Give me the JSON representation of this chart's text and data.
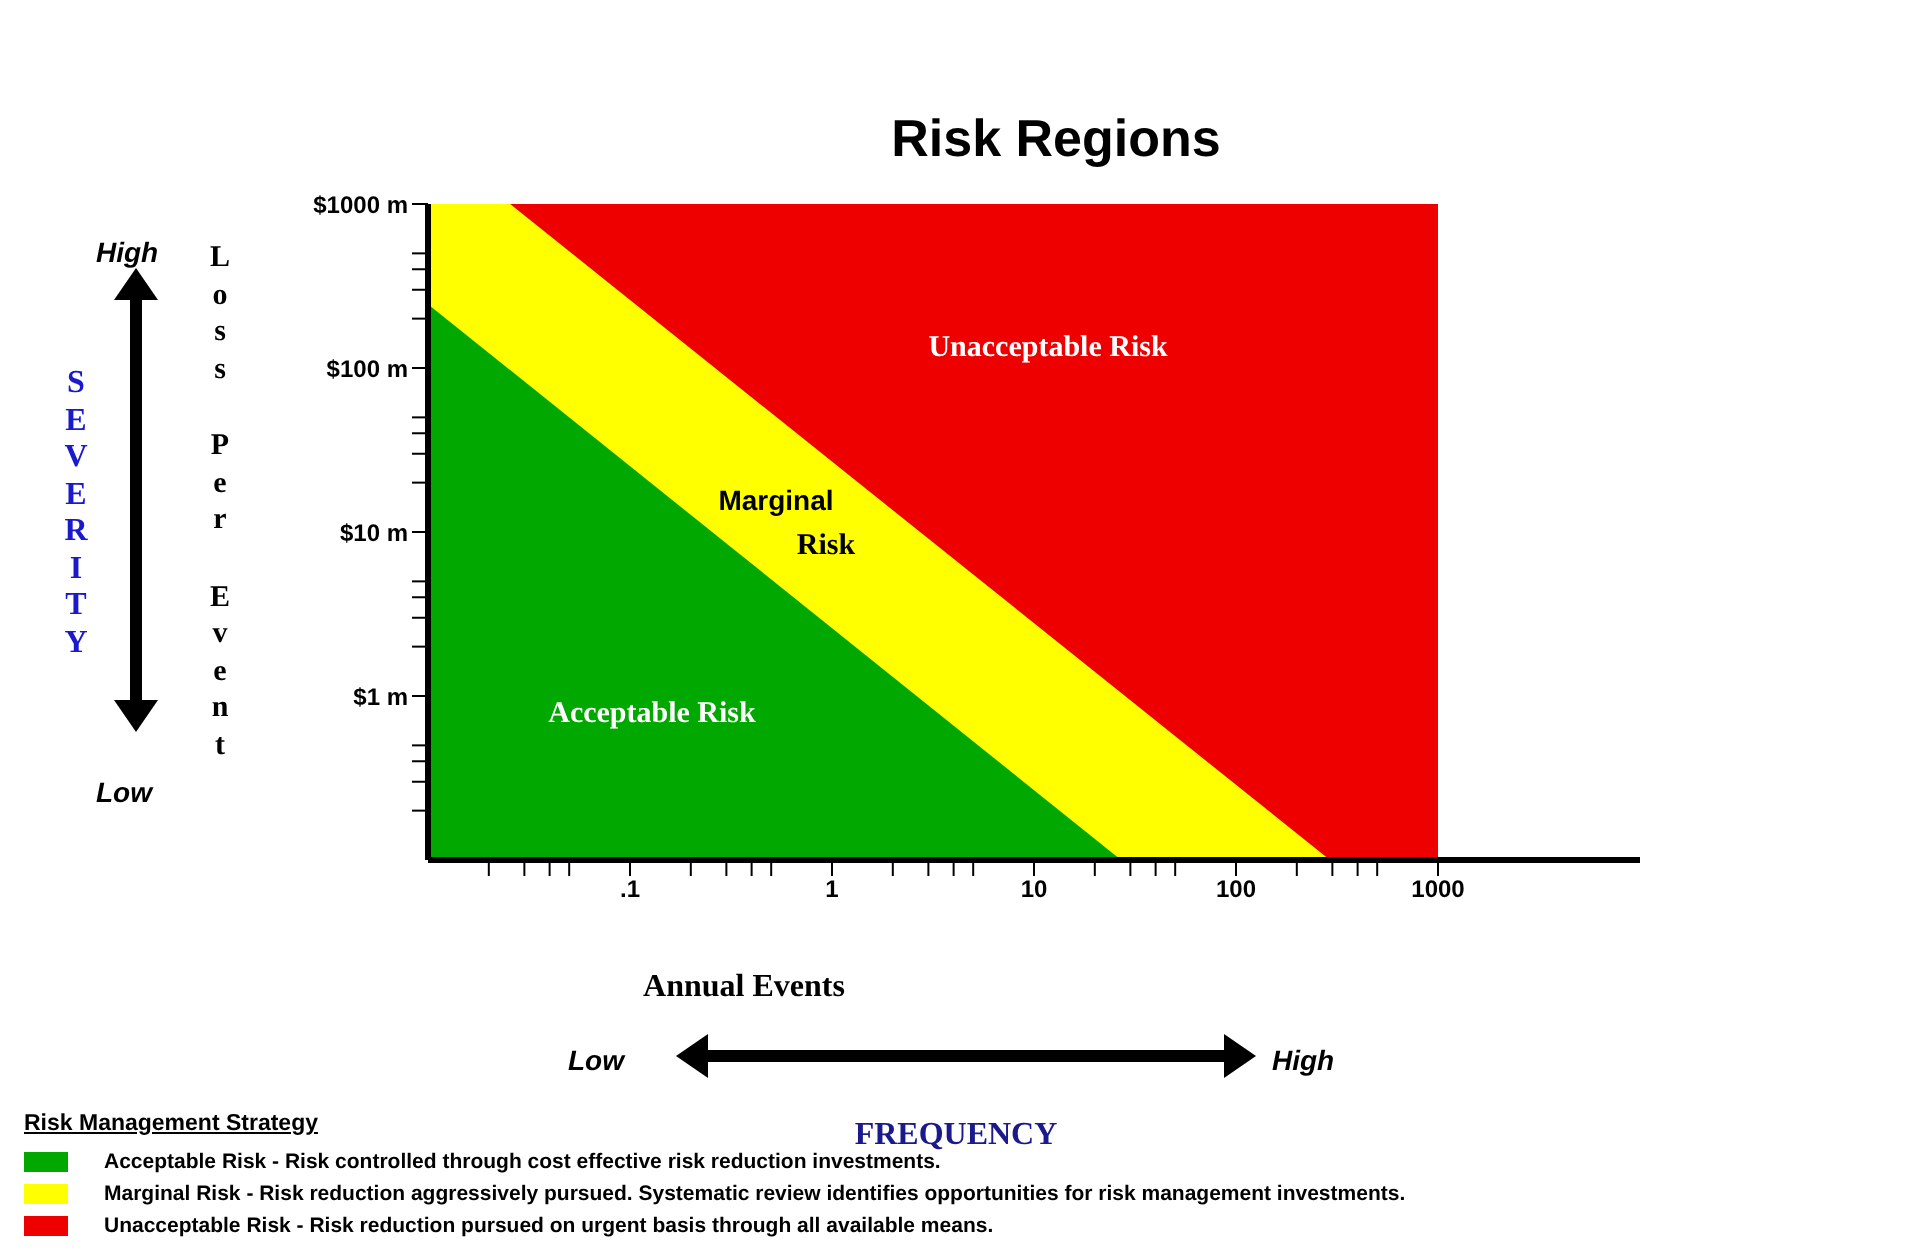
{
  "chart_data": {
    "type": "area",
    "title": "Risk Regions",
    "xlabel": "Annual Events",
    "ylabel": "Loss Per Event",
    "legend_title": "Risk Management Strategy",
    "legend": "bottom",
    "log": "xy",
    "xlim": [
      0.01,
      10000
    ],
    "xticks": [
      {
        "value": 0.02,
        "label": null
      },
      {
        "value": 0.03,
        "label": null
      },
      {
        "value": 0.04,
        "label": null
      },
      {
        "value": 0.05,
        "label": null
      },
      {
        "value": 0.1,
        "label": ".1"
      },
      {
        "value": 0.2,
        "label": null
      },
      {
        "value": 0.3,
        "label": null
      },
      {
        "value": 0.4,
        "label": null
      },
      {
        "value": 0.5,
        "label": null
      },
      1,
      {
        "value": 2,
        "label": null
      },
      {
        "value": 3,
        "label": null
      },
      {
        "value": 4,
        "label": null
      },
      {
        "value": 5,
        "label": null
      },
      10,
      {
        "value": 20,
        "label": null
      },
      {
        "value": 30,
        "label": null
      },
      {
        "value": 40,
        "label": null
      },
      {
        "value": 50,
        "label": null
      },
      100,
      {
        "value": 200,
        "label": null
      },
      {
        "value": 300,
        "label": null
      },
      {
        "value": 400,
        "label": null
      },
      {
        "value": 500,
        "label": null
      },
      1000
    ],
    "ylim": [
      0.1,
      1000
    ],
    "yticks": [
      {
        "value": 0.2,
        "label": null
      },
      {
        "value": 0.3,
        "label": null
      },
      {
        "value": 0.4,
        "label": null
      },
      {
        "value": 0.5,
        "label": null
      },
      {
        "value": 1,
        "label": "$1 m"
      },
      {
        "value": 2,
        "label": null
      },
      {
        "value": 3,
        "label": null
      },
      {
        "value": 4,
        "label": null
      },
      {
        "value": 5,
        "label": null
      },
      {
        "value": 10,
        "label": "$10 m"
      },
      {
        "value": 20,
        "label": null
      },
      {
        "value": 30,
        "label": null
      },
      {
        "value": 40,
        "label": null
      },
      {
        "value": 50,
        "label": null
      },
      {
        "value": 100,
        "label": "$100 m"
      },
      {
        "value": 200,
        "label": null
      },
      {
        "value": 300,
        "label": null
      },
      {
        "value": 400,
        "label": null
      },
      {
        "value": 500,
        "label": null
      },
      {
        "value": 1000,
        "label": "$1000 m"
      }
    ],
    "series": [
      {
        "name": "Acceptable Risk - Risk controlled through cost effective risk reduction investments.",
        "color": "#00a800",
        "x": [
          0.01,
          27
        ],
        "values": [
          245,
          0.1
        ]
      },
      {
        "name": "Marginal Risk - Risk reduction aggressively pursued.  Systematic review identifies opportunities for risk management investments.",
        "color": "#ffff00",
        "x": [
          0.01,
          0.0255,
          292
        ],
        "values": [
          1000,
          1000,
          0.1
        ]
      },
      {
        "name": "Unacceptable Risk - Risk reduction pursued on urgent basis through all available means.",
        "color": "#ee0000",
        "x": [
          0.01,
          1000
        ],
        "values": [
          1000,
          1000
        ]
      }
    ],
    "annotations": [
      "Acceptable Risk",
      "Marginal Risk",
      "Unacceptable Risk",
      "SEVERITY",
      "High",
      "Low",
      "FREQUENCY",
      "Low",
      "High"
    ]
  }
}
